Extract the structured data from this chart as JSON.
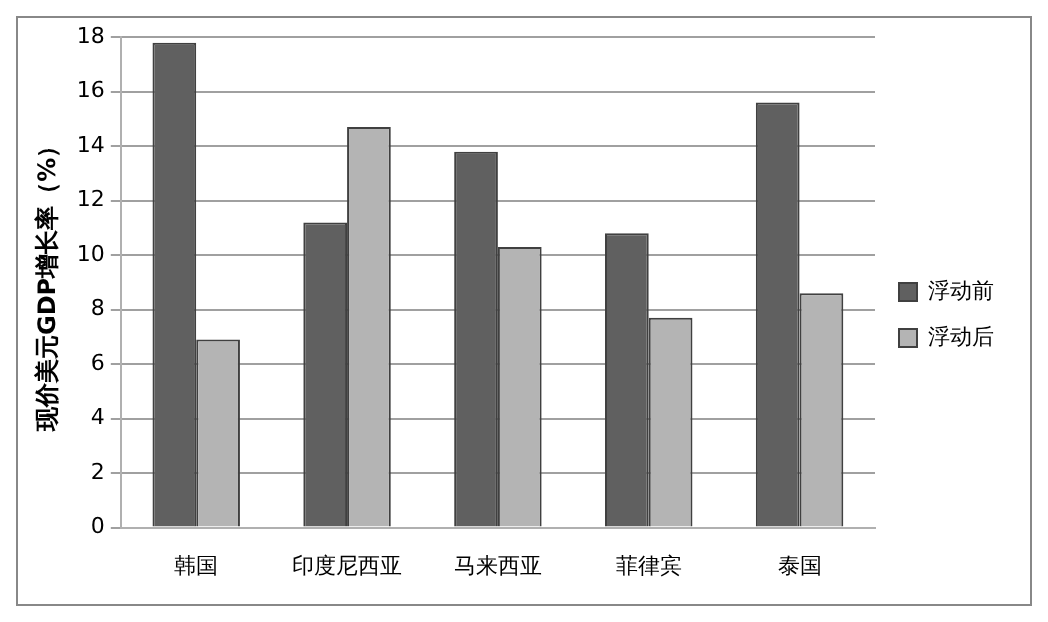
{
  "chart_data": {
    "type": "bar",
    "ylabel": "现价美元GDP增长率（%）",
    "categories": [
      "韩国",
      "印度尼西亚",
      "马来西亚",
      "菲律宾",
      "泰国"
    ],
    "series": [
      {
        "name": "浮动前",
        "color": "#606060",
        "values": [
          17.8,
          11.2,
          13.8,
          10.8,
          15.6
        ]
      },
      {
        "name": "浮动后",
        "color": "#b4b4b4",
        "values": [
          6.9,
          14.7,
          10.3,
          7.7,
          8.6
        ]
      }
    ],
    "ylim": [
      0,
      18
    ],
    "yticks": [
      0,
      2,
      4,
      6,
      8,
      10,
      12,
      14,
      16,
      18
    ],
    "grid": "y",
    "legend": "right"
  }
}
